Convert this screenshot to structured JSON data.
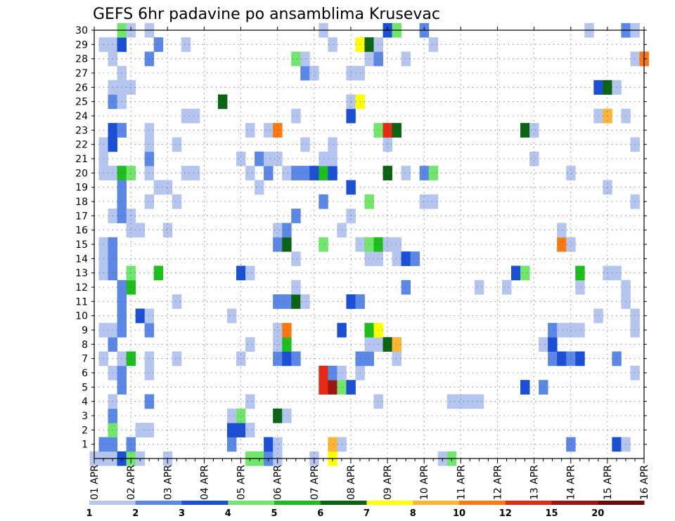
{
  "chart_data": {
    "type": "heatmap",
    "title": "GEFS 6hr padavine po ansamblima Krusevac",
    "xlabel": "",
    "ylabel": "",
    "x_ticks": [
      "01 APR",
      "02 APR",
      "03 APR",
      "04 APR",
      "05 APR",
      "06 APR",
      "07 APR",
      "08 APR",
      "09 APR",
      "10 APR",
      "11 APR",
      "12 APR",
      "13 APR",
      "14 APR",
      "15 APR",
      "16 APR"
    ],
    "xlim": [
      0,
      60
    ],
    "steps_per_day": 4,
    "y_ticks": [
      1,
      2,
      3,
      4,
      5,
      6,
      7,
      8,
      9,
      10,
      11,
      12,
      13,
      14,
      15,
      16,
      17,
      18,
      19,
      20,
      21,
      22,
      23,
      24,
      25,
      26,
      27,
      28,
      29,
      30
    ],
    "ylim": [
      0,
      30
    ],
    "grid": true,
    "legend": "bottom colorbar",
    "colorbar": {
      "labels": [
        "1",
        "2",
        "3",
        "4",
        "5",
        "6",
        "7",
        "8",
        "10",
        "12",
        "15",
        "20"
      ],
      "colors": [
        "#b4c6f0",
        "#5b87e6",
        "#1a4fd6",
        "#70e66a",
        "#1cbf1c",
        "#0a6414",
        "#ffff00",
        "#ffb432",
        "#ff780f",
        "#e62814",
        "#a01414",
        "#6e0a0a"
      ]
    },
    "cells": [
      [
        0,
        0,
        1
      ],
      [
        0,
        1,
        1
      ],
      [
        0,
        2,
        1
      ],
      [
        0,
        3,
        3
      ],
      [
        0,
        4,
        4
      ],
      [
        0,
        5,
        1
      ],
      [
        0,
        8,
        1
      ],
      [
        0,
        17,
        4
      ],
      [
        0,
        18,
        4
      ],
      [
        0,
        19,
        2
      ],
      [
        0,
        20,
        1
      ],
      [
        0,
        24,
        1
      ],
      [
        0,
        26,
        7
      ],
      [
        0,
        38,
        1
      ],
      [
        0,
        39,
        4
      ],
      [
        1,
        1,
        2
      ],
      [
        1,
        2,
        2
      ],
      [
        1,
        4,
        2
      ],
      [
        1,
        15,
        2
      ],
      [
        1,
        19,
        3
      ],
      [
        1,
        20,
        1
      ],
      [
        1,
        26,
        8
      ],
      [
        1,
        27,
        1
      ],
      [
        1,
        52,
        2
      ],
      [
        1,
        57,
        3
      ],
      [
        1,
        58,
        1
      ],
      [
        2,
        2,
        4
      ],
      [
        2,
        5,
        1
      ],
      [
        2,
        6,
        1
      ],
      [
        2,
        15,
        3
      ],
      [
        2,
        16,
        3
      ],
      [
        2,
        17,
        1
      ],
      [
        3,
        2,
        2
      ],
      [
        3,
        15,
        1
      ],
      [
        3,
        16,
        4
      ],
      [
        3,
        20,
        6
      ],
      [
        3,
        21,
        1
      ],
      [
        4,
        2,
        1
      ],
      [
        4,
        6,
        2
      ],
      [
        4,
        17,
        1
      ],
      [
        4,
        31,
        1
      ],
      [
        4,
        39,
        1
      ],
      [
        4,
        40,
        1
      ],
      [
        4,
        41,
        1
      ],
      [
        4,
        42,
        1
      ],
      [
        5,
        3,
        2
      ],
      [
        5,
        25,
        10
      ],
      [
        5,
        26,
        11
      ],
      [
        5,
        27,
        4
      ],
      [
        5,
        28,
        3
      ],
      [
        5,
        47,
        3
      ],
      [
        5,
        49,
        2
      ],
      [
        6,
        2,
        1
      ],
      [
        6,
        3,
        2
      ],
      [
        6,
        6,
        1
      ],
      [
        6,
        25,
        10
      ],
      [
        6,
        26,
        2
      ],
      [
        6,
        27,
        1
      ],
      [
        6,
        29,
        1
      ],
      [
        6,
        59,
        1
      ],
      [
        7,
        1,
        1
      ],
      [
        7,
        3,
        1
      ],
      [
        7,
        4,
        5
      ],
      [
        7,
        6,
        1
      ],
      [
        7,
        9,
        1
      ],
      [
        7,
        16,
        1
      ],
      [
        7,
        20,
        2
      ],
      [
        7,
        21,
        3
      ],
      [
        7,
        22,
        2
      ],
      [
        7,
        29,
        2
      ],
      [
        7,
        30,
        2
      ],
      [
        7,
        33,
        1
      ],
      [
        7,
        50,
        2
      ],
      [
        7,
        51,
        3
      ],
      [
        7,
        52,
        2
      ],
      [
        7,
        53,
        3
      ],
      [
        7,
        57,
        2
      ],
      [
        8,
        2,
        2
      ],
      [
        8,
        17,
        1
      ],
      [
        8,
        20,
        1
      ],
      [
        8,
        21,
        5
      ],
      [
        8,
        30,
        1
      ],
      [
        8,
        31,
        1
      ],
      [
        8,
        32,
        6
      ],
      [
        8,
        33,
        8
      ],
      [
        8,
        49,
        1
      ],
      [
        8,
        50,
        3
      ],
      [
        9,
        1,
        1
      ],
      [
        9,
        2,
        1
      ],
      [
        9,
        3,
        2
      ],
      [
        9,
        6,
        2
      ],
      [
        9,
        20,
        1
      ],
      [
        9,
        21,
        9
      ],
      [
        9,
        27,
        3
      ],
      [
        9,
        30,
        5
      ],
      [
        9,
        31,
        7
      ],
      [
        9,
        50,
        2
      ],
      [
        9,
        51,
        1
      ],
      [
        9,
        52,
        1
      ],
      [
        9,
        53,
        1
      ],
      [
        9,
        59,
        1
      ],
      [
        10,
        3,
        2
      ],
      [
        10,
        5,
        3
      ],
      [
        10,
        6,
        1
      ],
      [
        10,
        15,
        1
      ],
      [
        10,
        55,
        1
      ],
      [
        10,
        59,
        1
      ],
      [
        11,
        3,
        2
      ],
      [
        11,
        9,
        1
      ],
      [
        11,
        20,
        2
      ],
      [
        11,
        21,
        2
      ],
      [
        11,
        22,
        6
      ],
      [
        11,
        23,
        1
      ],
      [
        11,
        28,
        3
      ],
      [
        11,
        29,
        2
      ],
      [
        11,
        58,
        1
      ],
      [
        12,
        3,
        2
      ],
      [
        12,
        4,
        5
      ],
      [
        12,
        22,
        1
      ],
      [
        12,
        34,
        2
      ],
      [
        12,
        42,
        1
      ],
      [
        12,
        45,
        1
      ],
      [
        12,
        53,
        1
      ],
      [
        12,
        58,
        1
      ],
      [
        13,
        1,
        1
      ],
      [
        13,
        2,
        2
      ],
      [
        13,
        4,
        4
      ],
      [
        13,
        7,
        5
      ],
      [
        13,
        16,
        3
      ],
      [
        13,
        17,
        1
      ],
      [
        13,
        46,
        3
      ],
      [
        13,
        47,
        4
      ],
      [
        13,
        53,
        5
      ],
      [
        13,
        56,
        1
      ],
      [
        13,
        57,
        1
      ],
      [
        14,
        1,
        1
      ],
      [
        14,
        2,
        2
      ],
      [
        14,
        22,
        1
      ],
      [
        14,
        30,
        1
      ],
      [
        14,
        31,
        1
      ],
      [
        14,
        33,
        1
      ],
      [
        14,
        34,
        3
      ],
      [
        14,
        35,
        2
      ],
      [
        15,
        1,
        1
      ],
      [
        15,
        2,
        2
      ],
      [
        15,
        20,
        2
      ],
      [
        15,
        21,
        6
      ],
      [
        15,
        25,
        4
      ],
      [
        15,
        29,
        1
      ],
      [
        15,
        30,
        4
      ],
      [
        15,
        31,
        5
      ],
      [
        15,
        32,
        1
      ],
      [
        15,
        33,
        1
      ],
      [
        15,
        51,
        9
      ],
      [
        15,
        52,
        1
      ],
      [
        16,
        4,
        1
      ],
      [
        16,
        5,
        1
      ],
      [
        16,
        8,
        1
      ],
      [
        16,
        20,
        1
      ],
      [
        16,
        21,
        2
      ],
      [
        16,
        27,
        1
      ],
      [
        16,
        51,
        1
      ],
      [
        17,
        2,
        1
      ],
      [
        17,
        3,
        2
      ],
      [
        17,
        4,
        1
      ],
      [
        17,
        22,
        2
      ],
      [
        17,
        28,
        1
      ],
      [
        18,
        3,
        2
      ],
      [
        18,
        6,
        1
      ],
      [
        18,
        9,
        1
      ],
      [
        18,
        25,
        2
      ],
      [
        18,
        30,
        4
      ],
      [
        18,
        36,
        1
      ],
      [
        18,
        37,
        1
      ],
      [
        18,
        59,
        1
      ],
      [
        19,
        3,
        2
      ],
      [
        19,
        7,
        1
      ],
      [
        19,
        8,
        1
      ],
      [
        19,
        18,
        1
      ],
      [
        19,
        28,
        3
      ],
      [
        19,
        56,
        1
      ],
      [
        20,
        1,
        1
      ],
      [
        20,
        2,
        1
      ],
      [
        20,
        3,
        5
      ],
      [
        20,
        4,
        4
      ],
      [
        20,
        6,
        1
      ],
      [
        20,
        10,
        1
      ],
      [
        20,
        11,
        1
      ],
      [
        20,
        17,
        1
      ],
      [
        20,
        19,
        2
      ],
      [
        20,
        21,
        1
      ],
      [
        20,
        22,
        2
      ],
      [
        20,
        23,
        2
      ],
      [
        20,
        24,
        3
      ],
      [
        20,
        25,
        5
      ],
      [
        20,
        26,
        3
      ],
      [
        20,
        32,
        6
      ],
      [
        20,
        34,
        1
      ],
      [
        20,
        36,
        2
      ],
      [
        20,
        37,
        4
      ],
      [
        20,
        52,
        1
      ],
      [
        21,
        1,
        1
      ],
      [
        21,
        6,
        2
      ],
      [
        21,
        16,
        1
      ],
      [
        21,
        18,
        2
      ],
      [
        21,
        19,
        1
      ],
      [
        21,
        20,
        1
      ],
      [
        21,
        25,
        1
      ],
      [
        21,
        26,
        1
      ],
      [
        21,
        48,
        1
      ],
      [
        22,
        1,
        1
      ],
      [
        22,
        2,
        3
      ],
      [
        22,
        6,
        1
      ],
      [
        22,
        9,
        1
      ],
      [
        22,
        23,
        1
      ],
      [
        22,
        26,
        1
      ],
      [
        22,
        32,
        1
      ],
      [
        22,
        59,
        1
      ],
      [
        23,
        2,
        3
      ],
      [
        23,
        3,
        2
      ],
      [
        23,
        6,
        1
      ],
      [
        23,
        17,
        1
      ],
      [
        23,
        19,
        1
      ],
      [
        23,
        20,
        9
      ],
      [
        23,
        31,
        4
      ],
      [
        23,
        32,
        10
      ],
      [
        23,
        33,
        6
      ],
      [
        23,
        47,
        6
      ],
      [
        23,
        48,
        1
      ],
      [
        24,
        10,
        1
      ],
      [
        24,
        11,
        1
      ],
      [
        24,
        22,
        1
      ],
      [
        24,
        28,
        3
      ],
      [
        24,
        55,
        1
      ],
      [
        24,
        56,
        8
      ],
      [
        24,
        58,
        1
      ],
      [
        25,
        2,
        2
      ],
      [
        25,
        3,
        1
      ],
      [
        25,
        14,
        6
      ],
      [
        25,
        28,
        1
      ],
      [
        25,
        29,
        7
      ],
      [
        26,
        2,
        1
      ],
      [
        26,
        3,
        1
      ],
      [
        26,
        4,
        1
      ],
      [
        26,
        55,
        3
      ],
      [
        26,
        56,
        6
      ],
      [
        26,
        57,
        1
      ],
      [
        27,
        3,
        1
      ],
      [
        27,
        23,
        2
      ],
      [
        27,
        24,
        1
      ],
      [
        27,
        28,
        1
      ],
      [
        27,
        29,
        1
      ],
      [
        28,
        2,
        1
      ],
      [
        28,
        6,
        2
      ],
      [
        28,
        22,
        4
      ],
      [
        28,
        23,
        1
      ],
      [
        28,
        30,
        1
      ],
      [
        28,
        31,
        2
      ],
      [
        28,
        34,
        1
      ],
      [
        28,
        59,
        1
      ],
      [
        28,
        60,
        9
      ],
      [
        29,
        1,
        1
      ],
      [
        29,
        2,
        1
      ],
      [
        29,
        3,
        3
      ],
      [
        29,
        7,
        2
      ],
      [
        29,
        10,
        1
      ],
      [
        29,
        26,
        1
      ],
      [
        29,
        29,
        7
      ],
      [
        29,
        30,
        6
      ],
      [
        29,
        31,
        1
      ],
      [
        29,
        37,
        1
      ],
      [
        30,
        3,
        4
      ],
      [
        30,
        4,
        1
      ],
      [
        30,
        6,
        1
      ],
      [
        30,
        25,
        1
      ],
      [
        30,
        32,
        3
      ],
      [
        30,
        33,
        4
      ],
      [
        30,
        36,
        2
      ],
      [
        30,
        54,
        1
      ],
      [
        30,
        58,
        2
      ],
      [
        30,
        59,
        1
      ]
    ]
  }
}
